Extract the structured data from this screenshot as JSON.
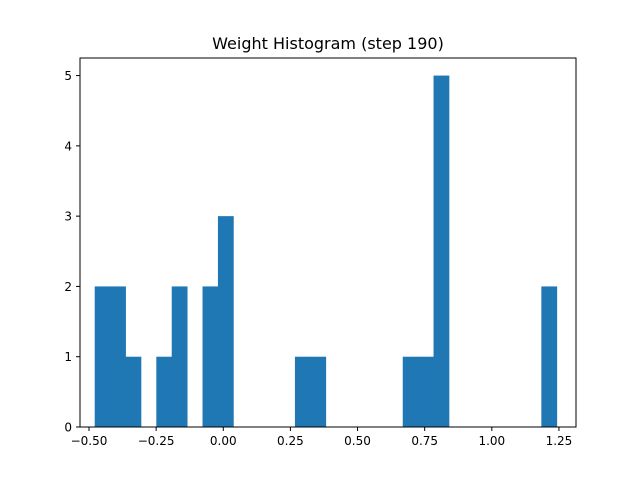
{
  "chart_data": {
    "type": "bar",
    "title": "Weight Histogram (step 190)",
    "xlabel": "",
    "ylabel": "",
    "bar_color": "#1f77b4",
    "x_ticks": [
      -0.5,
      -0.25,
      0.0,
      0.25,
      0.5,
      0.75,
      1.0,
      1.25
    ],
    "x_tick_labels": [
      "−0.50",
      "−0.25",
      "0.00",
      "0.25",
      "0.50",
      "0.75",
      "1.00",
      "1.25"
    ],
    "y_ticks": [
      0,
      1,
      2,
      3,
      4,
      5
    ],
    "y_tick_labels": [
      "0",
      "1",
      "2",
      "3",
      "4",
      "5"
    ],
    "xlim": [
      -0.5335,
      1.3135
    ],
    "ylim": [
      0,
      5.25
    ],
    "grid": false,
    "legend": "none",
    "bin_start": -0.4787,
    "bin_width": 0.05735,
    "counts": [
      2,
      2,
      1,
      0,
      1,
      2,
      0,
      2,
      3,
      0,
      0,
      0,
      0,
      1,
      1,
      0,
      0,
      0,
      0,
      0,
      1,
      1,
      5,
      0,
      0,
      0,
      0,
      0,
      0,
      2
    ]
  }
}
